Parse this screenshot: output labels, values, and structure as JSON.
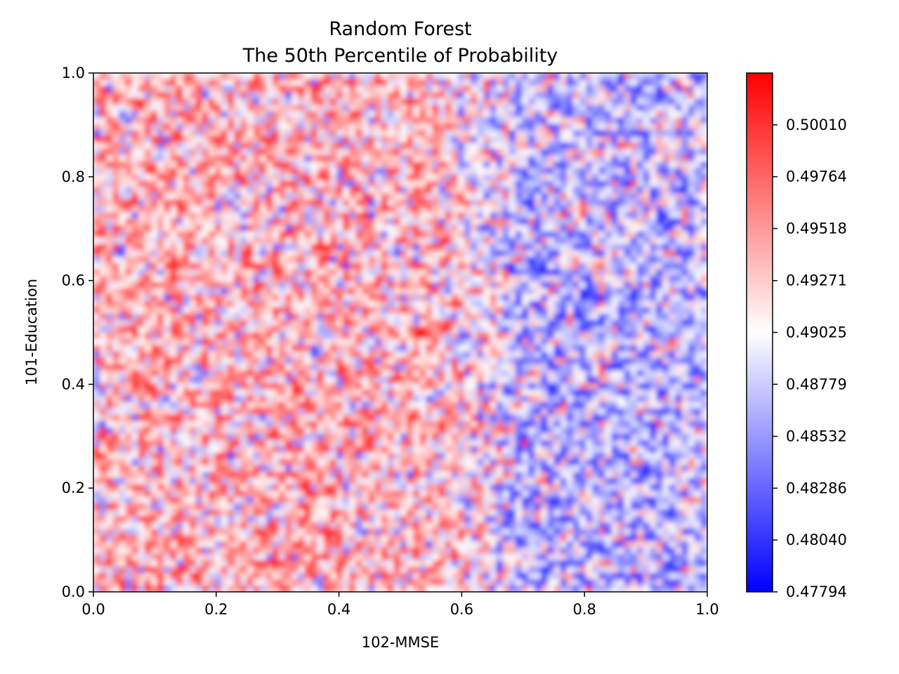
{
  "chart_data": {
    "type": "heatmap",
    "title": "Random Forest",
    "subtitle": "The 50th Percentile of Probability",
    "xlabel": "102-MMSE",
    "ylabel": "101-Education",
    "xlim": [
      0.0,
      1.0
    ],
    "ylim": [
      0.0,
      1.0
    ],
    "x_ticks": [
      {
        "value": 0.0,
        "label": "0.0"
      },
      {
        "value": 0.2,
        "label": "0.2"
      },
      {
        "value": 0.4,
        "label": "0.4"
      },
      {
        "value": 0.6,
        "label": "0.6"
      },
      {
        "value": 0.8,
        "label": "0.8"
      },
      {
        "value": 1.0,
        "label": "1.0"
      }
    ],
    "y_ticks": [
      {
        "value": 0.0,
        "label": "0.0"
      },
      {
        "value": 0.2,
        "label": "0.2"
      },
      {
        "value": 0.4,
        "label": "0.4"
      },
      {
        "value": 0.6,
        "label": "0.6"
      },
      {
        "value": 0.8,
        "label": "0.8"
      },
      {
        "value": 1.0,
        "label": "1.0"
      }
    ],
    "colormap": "bwr",
    "colormap_colors": [
      "#0000ff",
      "#ffffff",
      "#ff0000"
    ],
    "color_range": [
      0.47794,
      0.50256
    ],
    "colorbar_ticks": [
      {
        "value": 0.47794,
        "label": "0.47794"
      },
      {
        "value": 0.4804,
        "label": "0.48040"
      },
      {
        "value": 0.48286,
        "label": "0.48286"
      },
      {
        "value": 0.48532,
        "label": "0.48532"
      },
      {
        "value": 0.48779,
        "label": "0.48779"
      },
      {
        "value": 0.49025,
        "label": "0.49025"
      },
      {
        "value": 0.49271,
        "label": "0.49271"
      },
      {
        "value": 0.49518,
        "label": "0.49518"
      },
      {
        "value": 0.49764,
        "label": "0.49764"
      },
      {
        "value": 0.5001,
        "label": "0.50010"
      }
    ],
    "grid": false,
    "z_trend": "mostly above 0.490 (red) for 102-MMSE below about 0.6; mostly below 0.490 (blue) for 102-MMSE above about 0.6, fine-grained noisy texture throughout"
  }
}
